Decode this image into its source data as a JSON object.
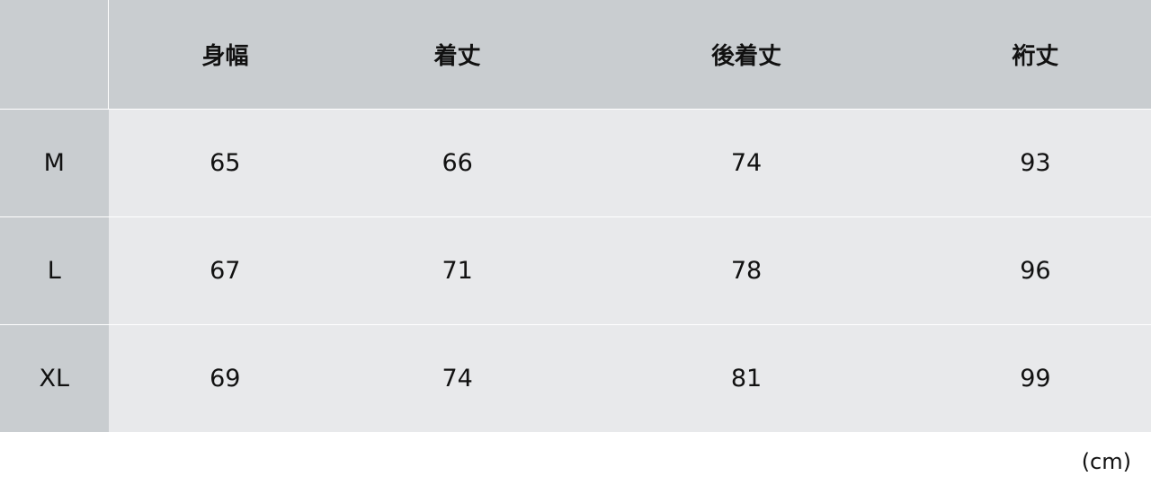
{
  "headers": [
    "身幅",
    "着丈",
    "後着丈",
    "裄丈"
  ],
  "rows": [
    {
      "size": "M",
      "values": [
        "65",
        "66",
        "74",
        "93"
      ]
    },
    {
      "size": "L",
      "values": [
        "67",
        "71",
        "78",
        "96"
      ]
    },
    {
      "size": "XL",
      "values": [
        "69",
        "74",
        "81",
        "99"
      ]
    }
  ],
  "unit": "(cm)",
  "colors": {
    "header_bg": "#c9cdd0",
    "body_bg": "#e8e9eb"
  }
}
